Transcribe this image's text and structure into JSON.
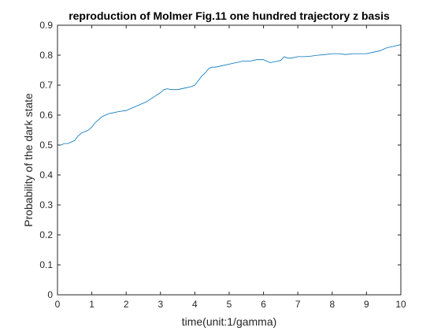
{
  "chart_data": {
    "type": "line",
    "title": "reproduction of Molmer Fig.11 one hundred trajectory z basis",
    "xlabel": "time(unit:1/gamma)",
    "ylabel": "Probability of the dark state",
    "xlim": [
      0,
      10
    ],
    "ylim": [
      0,
      0.9
    ],
    "xticks": [
      0,
      1,
      2,
      3,
      4,
      5,
      6,
      7,
      8,
      9,
      10
    ],
    "xtick_labels": [
      "0",
      "1",
      "2",
      "3",
      "4",
      "5",
      "6",
      "7",
      "8",
      "9",
      "10"
    ],
    "yticks": [
      0,
      0.1,
      0.2,
      0.3,
      0.4,
      0.5,
      0.6,
      0.7,
      0.8,
      0.9
    ],
    "ytick_labels": [
      "0",
      "0.1",
      "0.2",
      "0.3",
      "0.4",
      "0.5",
      "0.6",
      "0.7",
      "0.8",
      "0.9"
    ],
    "grid": false,
    "box": true,
    "line_color": "#0072bd",
    "series": [
      {
        "x": [
          0.0,
          0.1,
          0.2,
          0.3,
          0.4,
          0.5,
          0.6,
          0.7,
          0.8,
          0.9,
          1.0,
          1.1,
          1.2,
          1.3,
          1.4,
          1.5,
          1.6,
          1.8,
          2.0,
          2.2,
          2.4,
          2.6,
          2.8,
          3.0,
          3.1,
          3.2,
          3.3,
          3.5,
          3.7,
          3.9,
          4.0,
          4.1,
          4.2,
          4.3,
          4.4,
          4.5,
          4.6,
          4.8,
          5.0,
          5.2,
          5.4,
          5.6,
          5.8,
          6.0,
          6.2,
          6.4,
          6.5,
          6.6,
          6.7,
          6.8,
          7.0,
          7.2,
          7.4,
          7.6,
          7.8,
          8.0,
          8.2,
          8.4,
          8.6,
          8.8,
          9.0,
          9.2,
          9.4,
          9.6,
          9.8,
          10.0
        ],
        "y": [
          0.5,
          0.5,
          0.505,
          0.505,
          0.51,
          0.515,
          0.53,
          0.54,
          0.545,
          0.55,
          0.56,
          0.575,
          0.585,
          0.595,
          0.6,
          0.605,
          0.607,
          0.612,
          0.615,
          0.625,
          0.635,
          0.645,
          0.66,
          0.675,
          0.685,
          0.688,
          0.685,
          0.685,
          0.69,
          0.695,
          0.7,
          0.715,
          0.73,
          0.74,
          0.755,
          0.76,
          0.76,
          0.765,
          0.77,
          0.775,
          0.78,
          0.78,
          0.785,
          0.785,
          0.775,
          0.78,
          0.782,
          0.795,
          0.79,
          0.79,
          0.795,
          0.795,
          0.797,
          0.8,
          0.802,
          0.805,
          0.805,
          0.802,
          0.805,
          0.805,
          0.805,
          0.81,
          0.815,
          0.825,
          0.83,
          0.835
        ]
      }
    ]
  }
}
